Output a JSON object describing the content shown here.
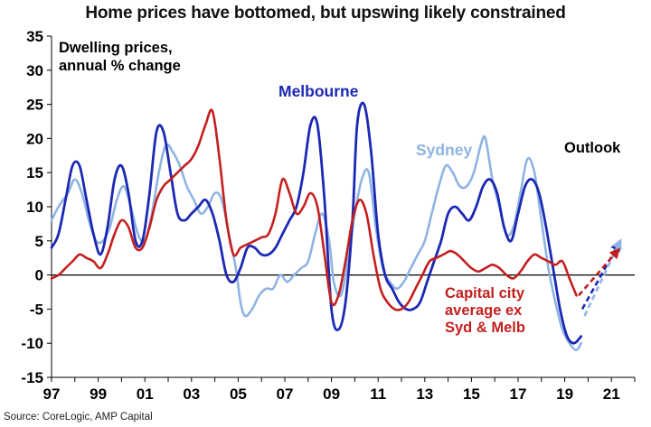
{
  "title": "Home prices have bottomed, but upswing likely constrained",
  "source": "Source: CoreLogic, AMP Capital",
  "chart_data": {
    "type": "line",
    "ylabel_lines": [
      "Dwelling prices,",
      "annual % change"
    ],
    "ylim": [
      -15,
      35
    ],
    "yticks": [
      35,
      30,
      25,
      20,
      15,
      10,
      5,
      0,
      -5,
      -10,
      -15
    ],
    "xlim": [
      1997,
      2022
    ],
    "xticks": [
      {
        "v": 1997,
        "label": "97"
      },
      {
        "v": 1999,
        "label": "99"
      },
      {
        "v": 2001,
        "label": "01"
      },
      {
        "v": 2003,
        "label": "03"
      },
      {
        "v": 2005,
        "label": "05"
      },
      {
        "v": 2007,
        "label": "07"
      },
      {
        "v": 2009,
        "label": "09"
      },
      {
        "v": 2011,
        "label": "11"
      },
      {
        "v": 2013,
        "label": "13"
      },
      {
        "v": 2015,
        "label": "15"
      },
      {
        "v": 2017,
        "label": "17"
      },
      {
        "v": 2019,
        "label": "19"
      },
      {
        "v": 2021,
        "label": "21"
      }
    ],
    "grid": false,
    "zero_line": true,
    "outlook_label": "Outlook",
    "series": [
      {
        "name": "Sydney",
        "label_lines": [
          "Sydney"
        ],
        "color": "#8fb4e3",
        "width": 2.6,
        "x": [
          1997.0,
          1997.3,
          1997.7,
          1998.0,
          1998.3,
          1998.6,
          1998.9,
          1999.2,
          1999.5,
          1999.8,
          2000.1,
          2000.4,
          2000.7,
          2001.0,
          2001.3,
          2001.6,
          2001.9,
          2002.2,
          2002.5,
          2002.8,
          2003.1,
          2003.4,
          2003.7,
          2004.0,
          2004.3,
          2004.6,
          2004.9,
          2005.1,
          2005.3,
          2005.6,
          2005.9,
          2006.2,
          2006.5,
          2006.8,
          2007.1,
          2007.4,
          2007.7,
          2008.0,
          2008.3,
          2008.6,
          2008.9,
          2009.1,
          2009.4,
          2009.7,
          2010.0,
          2010.3,
          2010.6,
          2010.9,
          2011.2,
          2011.5,
          2011.8,
          2012.1,
          2012.4,
          2012.7,
          2013.0,
          2013.3,
          2013.6,
          2013.9,
          2014.2,
          2014.5,
          2014.8,
          2015.1,
          2015.4,
          2015.6,
          2015.9,
          2016.2,
          2016.5,
          2016.8,
          2017.1,
          2017.4,
          2017.7,
          2018.0,
          2018.3,
          2018.6,
          2018.9,
          2019.2,
          2019.5,
          2019.7
        ],
        "y": [
          8,
          10,
          12,
          14,
          12,
          8,
          5,
          5,
          7,
          11,
          13,
          10,
          6,
          5,
          9,
          15,
          19,
          18,
          16,
          13,
          11,
          9,
          10,
          12,
          11,
          6,
          1,
          -4,
          -6,
          -5,
          -3,
          -2,
          -2,
          0,
          -1,
          0,
          1,
          2,
          6,
          9,
          5,
          -1,
          -3,
          2,
          9,
          14,
          15,
          7,
          1,
          -1,
          -2,
          -1,
          1,
          3,
          5,
          9,
          13,
          16,
          15,
          13,
          13,
          15,
          19,
          20,
          14,
          10,
          6,
          7,
          12,
          17,
          15,
          8,
          1,
          -4,
          -8,
          -10,
          -11,
          -10
        ]
      },
      {
        "name": "Melbourne",
        "label_lines": [
          "Melbourne"
        ],
        "color": "#1c28b4",
        "width": 2.8,
        "x": [
          1997.0,
          1997.3,
          1997.6,
          1997.9,
          1998.2,
          1998.5,
          1998.8,
          1999.1,
          1999.4,
          1999.7,
          2000.0,
          2000.3,
          2000.6,
          2000.9,
          2001.2,
          2001.5,
          2001.8,
          2002.1,
          2002.4,
          2002.7,
          2003.0,
          2003.3,
          2003.6,
          2003.9,
          2004.2,
          2004.5,
          2004.8,
          2005.1,
          2005.4,
          2005.7,
          2006.0,
          2006.3,
          2006.6,
          2006.9,
          2007.2,
          2007.5,
          2007.8,
          2008.1,
          2008.4,
          2008.7,
          2009.0,
          2009.3,
          2009.6,
          2009.9,
          2010.1,
          2010.4,
          2010.7,
          2011.0,
          2011.3,
          2011.6,
          2011.9,
          2012.2,
          2012.5,
          2012.8,
          2013.1,
          2013.4,
          2013.7,
          2014.0,
          2014.3,
          2014.6,
          2014.9,
          2015.2,
          2015.5,
          2015.8,
          2016.1,
          2016.4,
          2016.7,
          2017.0,
          2017.3,
          2017.6,
          2017.9,
          2018.2,
          2018.5,
          2018.8,
          2019.1,
          2019.4,
          2019.7
        ],
        "y": [
          4,
          6,
          11,
          16,
          16,
          11,
          6,
          3,
          7,
          14,
          16,
          12,
          5,
          5,
          12,
          21,
          21,
          15,
          9,
          8,
          9,
          10,
          11,
          9,
          5,
          0,
          -1,
          1,
          4,
          4,
          3,
          3,
          4,
          6,
          8,
          10,
          15,
          22,
          22,
          11,
          -5,
          -8,
          -4,
          8,
          22,
          25,
          18,
          6,
          0,
          -2,
          -4,
          -5,
          -5,
          -4,
          -1,
          2,
          5,
          9,
          10,
          9,
          8,
          10,
          13,
          14,
          12,
          7,
          5,
          9,
          13,
          14,
          12,
          7,
          1,
          -5,
          -9,
          -10,
          -9
        ]
      },
      {
        "name": "Capital city average ex Syd & Melb",
        "label_lines": [
          "Capital city",
          "average ex",
          "Syd & Melb"
        ],
        "color": "#c41f1f",
        "width": 2.6,
        "x": [
          1997.0,
          1997.3,
          1997.6,
          1997.9,
          1998.2,
          1998.5,
          1998.8,
          1999.1,
          1999.4,
          1999.7,
          2000.0,
          2000.3,
          2000.6,
          2000.9,
          2001.2,
          2001.5,
          2001.8,
          2002.1,
          2002.4,
          2002.7,
          2003.0,
          2003.3,
          2003.6,
          2003.9,
          2004.2,
          2004.5,
          2004.8,
          2005.1,
          2005.4,
          2005.7,
          2006.0,
          2006.3,
          2006.6,
          2006.9,
          2007.2,
          2007.5,
          2007.8,
          2008.1,
          2008.4,
          2008.7,
          2009.0,
          2009.3,
          2009.6,
          2009.9,
          2010.2,
          2010.5,
          2010.8,
          2011.1,
          2011.4,
          2011.7,
          2012.0,
          2012.3,
          2012.6,
          2012.9,
          2013.2,
          2013.5,
          2013.8,
          2014.1,
          2014.4,
          2014.7,
          2015.0,
          2015.3,
          2015.6,
          2015.9,
          2016.2,
          2016.5,
          2016.8,
          2017.1,
          2017.4,
          2017.7,
          2018.0,
          2018.3,
          2018.6,
          2018.9,
          2019.2,
          2019.5
        ],
        "y": [
          -0.5,
          0,
          1,
          2,
          3,
          2.5,
          2,
          1,
          3,
          6,
          8,
          7,
          4,
          4,
          7,
          11,
          13,
          14,
          15,
          16,
          17,
          19,
          22,
          24,
          17,
          8,
          3,
          4,
          4.5,
          5,
          5.5,
          6,
          9,
          14,
          12,
          9,
          10,
          12,
          10,
          3,
          -4,
          -3,
          2,
          8,
          11,
          9,
          3,
          -2,
          -4,
          -5,
          -5,
          -4,
          -2,
          0,
          2,
          2.5,
          3,
          3.5,
          3,
          2,
          1,
          0.5,
          1,
          1.5,
          1,
          0,
          -0.5,
          0.5,
          2,
          3,
          2.5,
          2,
          1.5,
          2,
          -0.5,
          -3
        ]
      }
    ],
    "outlook_series": [
      {
        "name": "Melbourne outlook",
        "color": "#1c28b4",
        "x": [
          2019.75,
          2021.3
        ],
        "y": [
          -5,
          4.5
        ]
      },
      {
        "name": "Sydney outlook",
        "color": "#8fb4e3",
        "x": [
          2019.85,
          2021.35
        ],
        "y": [
          -6,
          4.8
        ]
      },
      {
        "name": "Capital city outlook",
        "color": "#c41f1f",
        "x": [
          2019.6,
          2021.25
        ],
        "y": [
          -3,
          3.5
        ]
      }
    ]
  }
}
